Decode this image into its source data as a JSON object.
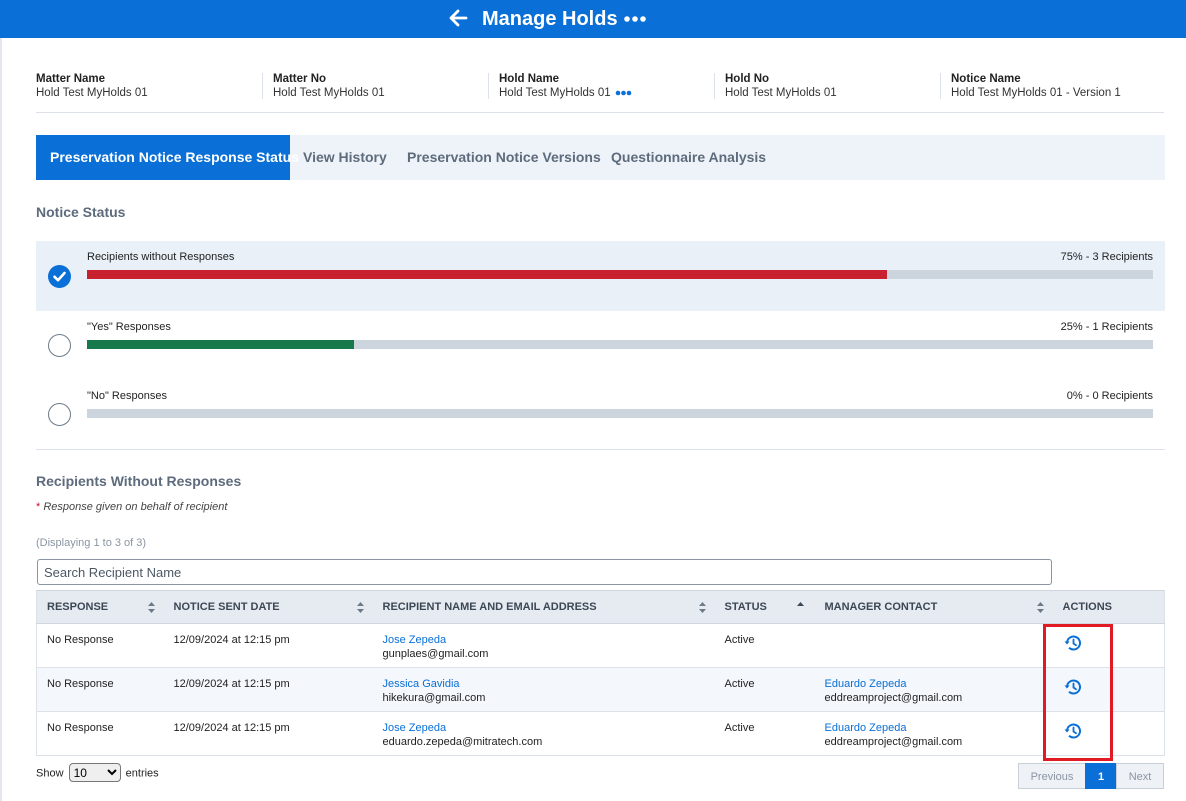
{
  "header": {
    "title": "Manage Holds"
  },
  "info": [
    {
      "label": "Matter Name",
      "value": "Hold Test MyHolds 01"
    },
    {
      "label": "Matter No",
      "value": "Hold Test MyHolds 01"
    },
    {
      "label": "Hold Name",
      "value": "Hold Test MyHolds 01"
    },
    {
      "label": "Hold No",
      "value": "Hold Test MyHolds 01"
    },
    {
      "label": "Notice Name",
      "value": "Hold Test MyHolds 01 - Version 1"
    }
  ],
  "tabs": [
    "Preservation Notice Response Status",
    "View History",
    "Preservation Notice Versions",
    "Questionnaire Analysis"
  ],
  "notice_status": {
    "heading": "Notice Status",
    "rows": [
      {
        "label": "Recipients without Responses",
        "count": "75% - 3 Recipients",
        "fraction": 0.75,
        "color": "#c8202e",
        "selected": true
      },
      {
        "label": "\"Yes\" Responses",
        "count": "25% - 1 Recipients",
        "fraction": 0.25,
        "color": "#17784b",
        "selected": false
      },
      {
        "label": "\"No\" Responses",
        "count": "0% - 0 Recipients",
        "fraction": 0.0,
        "color": "#17784b",
        "selected": false
      }
    ]
  },
  "recipients": {
    "heading": "Recipients Without Responses",
    "note_star": "*",
    "note": "Response given on behalf of recipient",
    "displaying": "(Displaying 1 to 3 of 3)",
    "search_placeholder": "Search Recipient Name",
    "columns": [
      "RESPONSE",
      "NOTICE SENT DATE",
      "RECIPIENT NAME AND EMAIL ADDRESS",
      "STATUS",
      "MANAGER CONTACT",
      "ACTIONS"
    ],
    "rows": [
      {
        "response": "No Response",
        "date": "12/09/2024 at 12:15 pm",
        "name": "Jose Zepeda",
        "email": "gunplaes@gmail.com",
        "status": "Active",
        "manager": "",
        "manager_email": ""
      },
      {
        "response": "No Response",
        "date": "12/09/2024 at 12:15 pm",
        "name": "Jessica Gavidia",
        "email": "hikekura@gmail.com",
        "status": "Active",
        "manager": "Eduardo Zepeda",
        "manager_email": "eddreamproject@gmail.com"
      },
      {
        "response": "No Response",
        "date": "12/09/2024 at 12:15 pm",
        "name": "Jose Zepeda",
        "email": "eduardo.zepeda@mitratech.com",
        "status": "Active",
        "manager": "Eduardo Zepeda",
        "manager_email": "eddreamproject@gmail.com"
      }
    ]
  },
  "footer": {
    "show": "Show",
    "entries_value": "10",
    "entries": "entries",
    "previous": "Previous",
    "page": "1",
    "next": "Next"
  },
  "icons": [
    "back-arrow-icon",
    "more-dots-icon",
    "check-icon",
    "sort-icon",
    "history-icon",
    "chevron-down-icon"
  ]
}
